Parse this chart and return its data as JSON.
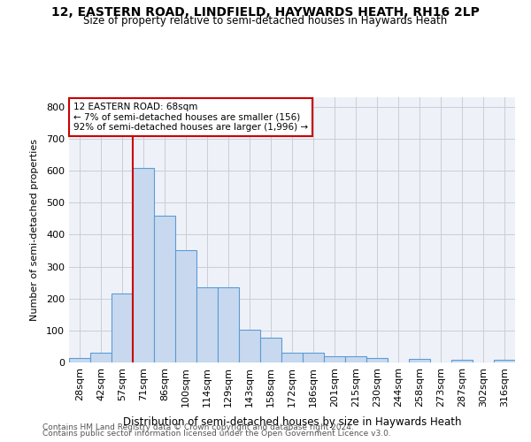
{
  "title": "12, EASTERN ROAD, LINDFIELD, HAYWARDS HEATH, RH16 2LP",
  "subtitle": "Size of property relative to semi-detached houses in Haywards Heath",
  "xlabel": "Distribution of semi-detached houses by size in Haywards Heath",
  "ylabel": "Number of semi-detached properties",
  "categories": [
    "28sqm",
    "42sqm",
    "57sqm",
    "71sqm",
    "86sqm",
    "100sqm",
    "114sqm",
    "129sqm",
    "143sqm",
    "158sqm",
    "172sqm",
    "186sqm",
    "201sqm",
    "215sqm",
    "230sqm",
    "244sqm",
    "258sqm",
    "273sqm",
    "287sqm",
    "302sqm",
    "316sqm"
  ],
  "values": [
    15,
    30,
    215,
    610,
    460,
    350,
    235,
    235,
    102,
    77,
    30,
    30,
    20,
    20,
    13,
    0,
    10,
    0,
    7,
    0,
    9
  ],
  "bar_color": "#c8d9ef",
  "bar_edge_color": "#5b9bd5",
  "property_label": "12 EASTERN ROAD: 68sqm",
  "pct_smaller": 7,
  "n_smaller": 156,
  "pct_larger": 92,
  "n_larger": 1996,
  "vline_position": 3,
  "annotation_box_color": "#ffffff",
  "annotation_box_edge_color": "#cc0000",
  "vline_color": "#cc0000",
  "ylim": [
    0,
    830
  ],
  "yticks": [
    0,
    100,
    200,
    300,
    400,
    500,
    600,
    700,
    800
  ],
  "grid_color": "#c8cdd8",
  "bg_color": "#eef2f8",
  "footer1": "Contains HM Land Registry data © Crown copyright and database right 2024.",
  "footer2": "Contains public sector information licensed under the Open Government Licence v3.0."
}
